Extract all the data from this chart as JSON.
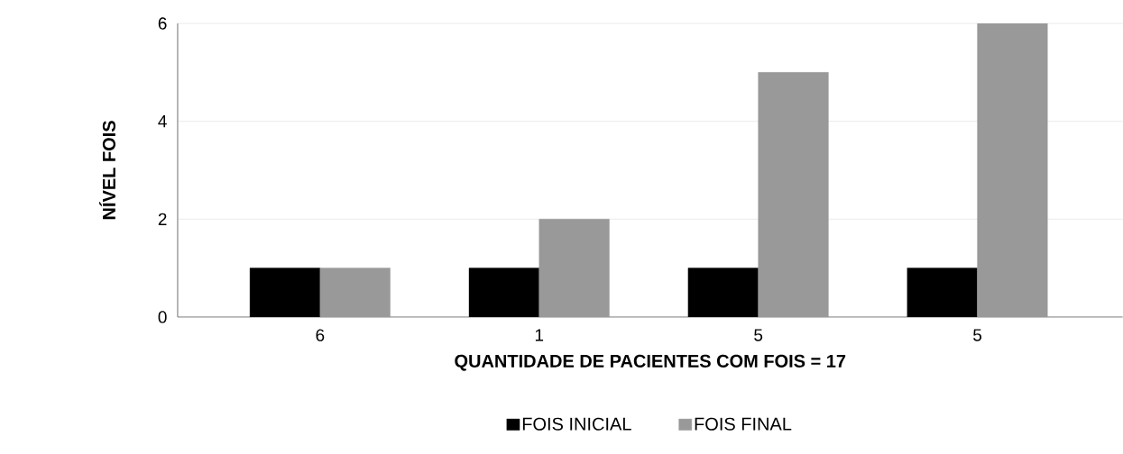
{
  "chart_data": {
    "type": "bar",
    "xlabel": "QUANTIDADE DE PACIENTES COM FOIS = 17",
    "ylabel": "NÍVEL FOIS",
    "categories": [
      "6",
      "1",
      "5",
      "5"
    ],
    "series": [
      {
        "name": "FOIS INICIAL",
        "color": "#000000",
        "values": [
          1,
          1,
          1,
          1
        ]
      },
      {
        "name": "FOIS FINAL",
        "color": "#999999",
        "values": [
          1,
          2,
          5,
          6
        ]
      }
    ],
    "ylim": [
      0,
      6
    ],
    "yticks": [
      0,
      2,
      4,
      6
    ],
    "grid": "y",
    "legend": "bottom"
  }
}
